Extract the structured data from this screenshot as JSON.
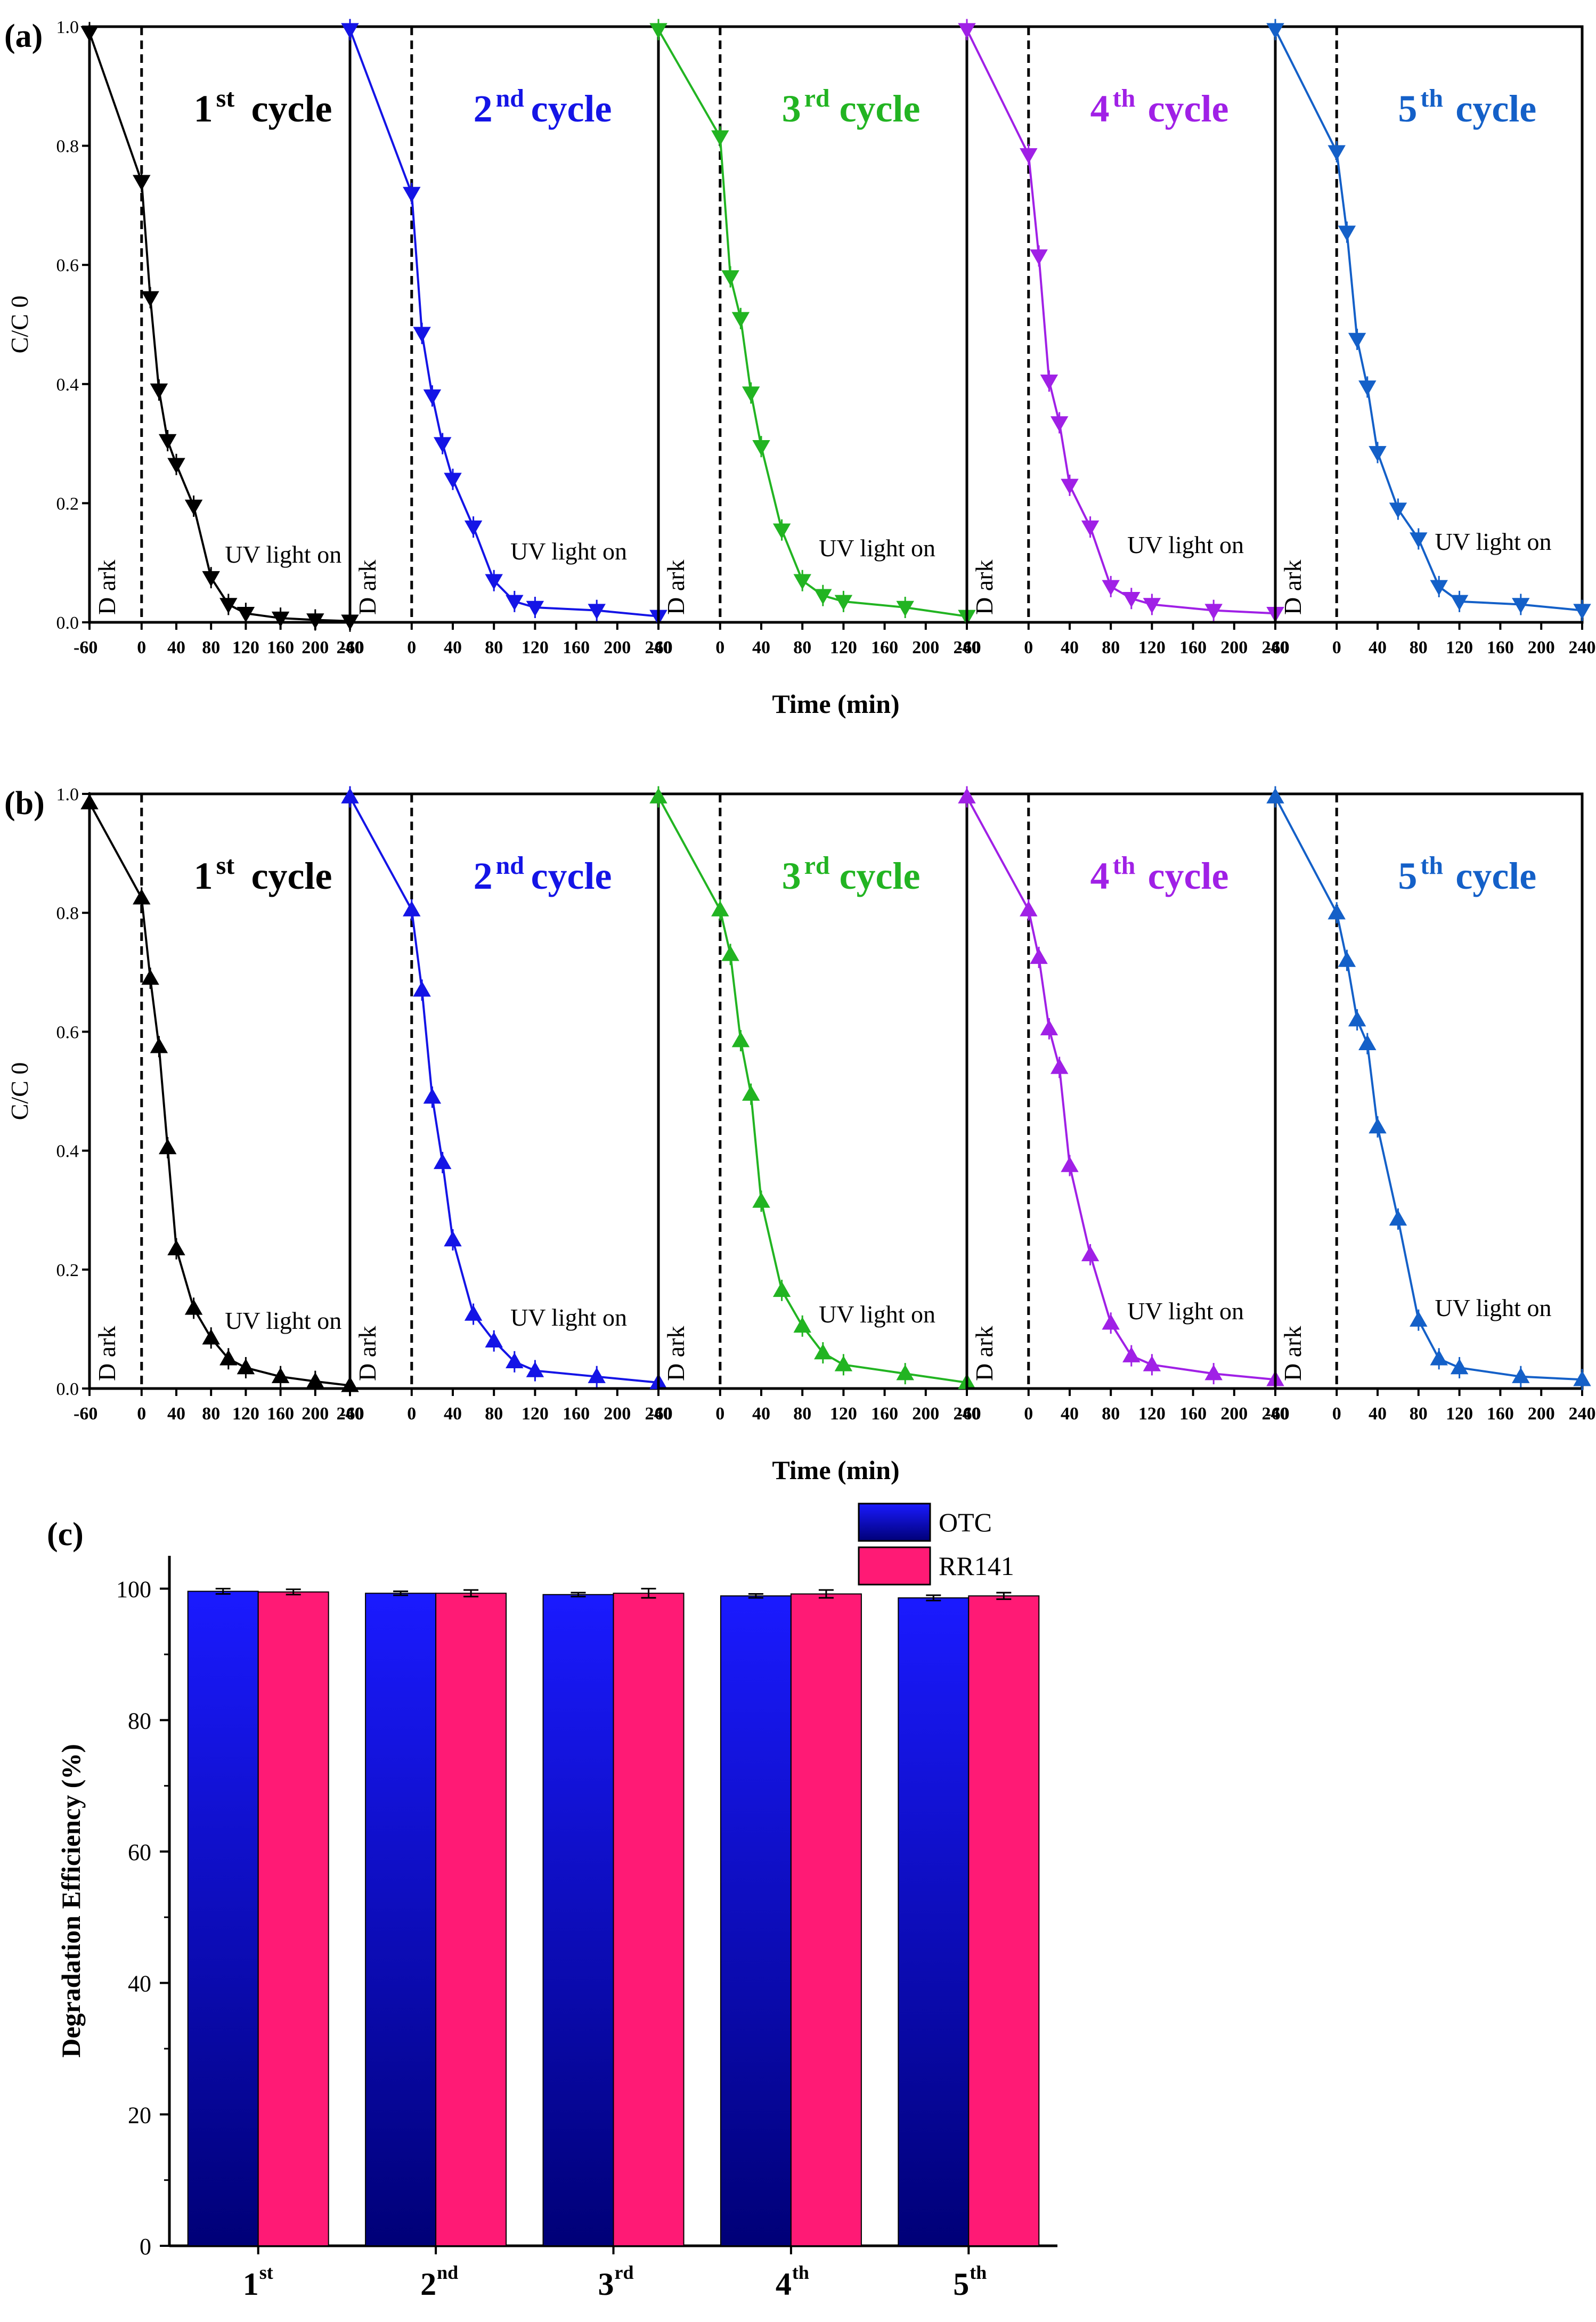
{
  "chart_data": [
    {
      "panel_label": "(a)",
      "type": "line",
      "xlabel": "Time (min)",
      "ylabel": "C/C 0",
      "ylim": [
        0,
        1.0
      ],
      "yticks": [
        "0.0",
        "0.2",
        "0.4",
        "0.6",
        "0.8",
        "1.0"
      ],
      "xlim": [
        -60,
        240
      ],
      "xticks": [
        "-60",
        "0",
        "40",
        "80",
        "120",
        "160",
        "200",
        "240"
      ],
      "dark_label": "D ark",
      "uv_label": "UV light on",
      "dark_divider_x": 0,
      "marker": "triangle-down",
      "cycles": [
        {
          "label": "1",
          "sup": "st",
          "suffix": "cycle",
          "color": "#000000",
          "x": [
            -60,
            0,
            10,
            20,
            30,
            40,
            60,
            80,
            100,
            120,
            160,
            200,
            240
          ],
          "y": [
            0.99,
            0.74,
            0.545,
            0.39,
            0.305,
            0.265,
            0.195,
            0.075,
            0.03,
            0.015,
            0.007,
            0.004,
            0.002
          ]
        },
        {
          "label": "2",
          "sup": "nd",
          "suffix": "cycle",
          "color": "#1414e6",
          "x": [
            -60,
            0,
            10,
            20,
            30,
            40,
            60,
            80,
            100,
            120,
            180,
            240
          ],
          "y": [
            0.995,
            0.72,
            0.485,
            0.38,
            0.3,
            0.24,
            0.16,
            0.07,
            0.035,
            0.025,
            0.02,
            0.01
          ]
        },
        {
          "label": "3",
          "sup": "rd",
          "suffix": "cycle",
          "color": "#22b422",
          "x": [
            -60,
            0,
            10,
            20,
            30,
            40,
            60,
            80,
            100,
            120,
            180,
            240
          ],
          "y": [
            0.995,
            0.815,
            0.58,
            0.51,
            0.385,
            0.295,
            0.155,
            0.07,
            0.045,
            0.035,
            0.025,
            0.01
          ]
        },
        {
          "label": "4",
          "sup": "th",
          "suffix": "cycle",
          "color": "#a020e6",
          "x": [
            -60,
            0,
            10,
            20,
            30,
            40,
            60,
            80,
            100,
            120,
            180,
            240
          ],
          "y": [
            0.995,
            0.785,
            0.615,
            0.405,
            0.335,
            0.23,
            0.16,
            0.06,
            0.04,
            0.03,
            0.02,
            0.015
          ]
        },
        {
          "label": "5",
          "sup": "th",
          "suffix": "cycle",
          "color": "#1460c8",
          "x": [
            -60,
            0,
            10,
            20,
            30,
            40,
            60,
            80,
            100,
            120,
            180,
            240
          ],
          "y": [
            0.995,
            0.79,
            0.655,
            0.475,
            0.395,
            0.285,
            0.19,
            0.14,
            0.06,
            0.035,
            0.03,
            0.02
          ]
        }
      ]
    },
    {
      "panel_label": "(b)",
      "type": "line",
      "xlabel": "Time (min)",
      "ylabel": "C/C 0",
      "ylim": [
        0,
        1.0
      ],
      "yticks": [
        "0.0",
        "0.2",
        "0.4",
        "0.6",
        "0.8",
        "1.0"
      ],
      "xlim": [
        -60,
        240
      ],
      "xticks": [
        "-60",
        "0",
        "40",
        "80",
        "120",
        "160",
        "200",
        "240"
      ],
      "dark_label": "D ark",
      "uv_label": "UV light on",
      "dark_divider_x": 0,
      "marker": "triangle-up",
      "cycles": [
        {
          "label": "1",
          "sup": "st",
          "suffix": "cycle",
          "color": "#000000",
          "x": [
            -60,
            0,
            10,
            20,
            30,
            40,
            60,
            80,
            100,
            120,
            160,
            200,
            240
          ],
          "y": [
            0.985,
            0.825,
            0.69,
            0.575,
            0.405,
            0.235,
            0.135,
            0.085,
            0.05,
            0.035,
            0.02,
            0.012,
            0.005
          ]
        },
        {
          "label": "2",
          "sup": "nd",
          "suffix": "cycle",
          "color": "#1414e6",
          "x": [
            -60,
            0,
            10,
            20,
            30,
            40,
            60,
            80,
            100,
            120,
            180,
            240
          ],
          "y": [
            0.995,
            0.805,
            0.67,
            0.49,
            0.38,
            0.25,
            0.125,
            0.08,
            0.045,
            0.03,
            0.02,
            0.01
          ]
        },
        {
          "label": "3",
          "sup": "rd",
          "suffix": "cycle",
          "color": "#22b422",
          "x": [
            -60,
            0,
            10,
            20,
            30,
            40,
            60,
            80,
            100,
            120,
            180,
            240
          ],
          "y": [
            0.995,
            0.805,
            0.73,
            0.585,
            0.495,
            0.315,
            0.165,
            0.105,
            0.06,
            0.04,
            0.025,
            0.01
          ]
        },
        {
          "label": "4",
          "sup": "th",
          "suffix": "cycle",
          "color": "#a020e6",
          "x": [
            -60,
            0,
            10,
            20,
            30,
            40,
            60,
            80,
            100,
            120,
            180,
            240
          ],
          "y": [
            0.995,
            0.805,
            0.725,
            0.605,
            0.54,
            0.375,
            0.225,
            0.11,
            0.055,
            0.04,
            0.025,
            0.015
          ]
        },
        {
          "label": "5",
          "sup": "th",
          "suffix": "cycle",
          "color": "#1460c8",
          "x": [
            -60,
            0,
            10,
            20,
            30,
            40,
            60,
            80,
            100,
            120,
            180,
            240
          ],
          "y": [
            0.995,
            0.8,
            0.72,
            0.62,
            0.58,
            0.44,
            0.285,
            0.115,
            0.05,
            0.035,
            0.02,
            0.015
          ]
        }
      ]
    },
    {
      "panel_label": "(c)",
      "type": "bar",
      "ylabel": "Degradation Efficiency (%)",
      "ylim": [
        0,
        105
      ],
      "yticks": [
        "0",
        "20",
        "40",
        "60",
        "80",
        "100"
      ],
      "categories": [
        {
          "num": "1",
          "sup": "st"
        },
        {
          "num": "2",
          "sup": "nd"
        },
        {
          "num": "3",
          "sup": "rd"
        },
        {
          "num": "4",
          "sup": "th"
        },
        {
          "num": "5",
          "sup": "th"
        }
      ],
      "legend_position": "top",
      "series": [
        {
          "name": "OTC",
          "color_top": "#1a1aff",
          "color_bottom": "#000077",
          "values": [
            99.6,
            99.3,
            99.1,
            98.9,
            98.6
          ],
          "errors": [
            0.4,
            0.3,
            0.3,
            0.3,
            0.4
          ]
        },
        {
          "name": "RR141",
          "color": "#ff1a75",
          "values": [
            99.5,
            99.3,
            99.3,
            99.2,
            98.9
          ],
          "errors": [
            0.4,
            0.5,
            0.7,
            0.6,
            0.5
          ]
        }
      ]
    }
  ]
}
